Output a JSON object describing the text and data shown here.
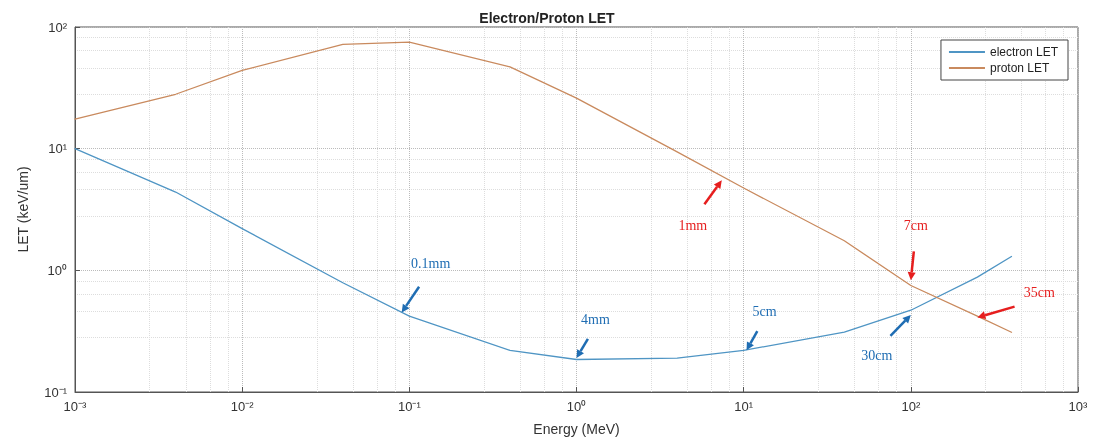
{
  "chart_data": {
    "type": "line",
    "title": "Electron/Proton LET",
    "xlabel": "Energy (MeV)",
    "ylabel": "LET (keV/um)",
    "x": [
      0.001,
      0.004,
      0.01,
      0.04,
      0.1,
      0.4,
      1,
      4,
      10,
      40,
      100,
      250,
      400
    ],
    "series": [
      {
        "name": "electron LET",
        "color": "#4f95c4",
        "values": [
          10,
          4.4,
          2.2,
          0.79,
          0.42,
          0.22,
          0.185,
          0.19,
          0.22,
          0.31,
          0.47,
          0.88,
          1.3
        ]
      },
      {
        "name": "proton LET",
        "color": "#c98a5e",
        "values": [
          17.5,
          28,
          44,
          72,
          75,
          47,
          26,
          9.4,
          4.75,
          1.75,
          0.75,
          0.42,
          0.31
        ]
      }
    ],
    "log": "xy",
    "xlim": [
      0.001,
      1000
    ],
    "ylim": [
      0.1,
      100
    ],
    "xticks": [
      {
        "value": 0.001,
        "label": "10⁻³"
      },
      {
        "value": 0.01,
        "label": "10⁻²"
      },
      {
        "value": 0.1,
        "label": "10⁻¹"
      },
      {
        "value": 1,
        "label": "10⁰"
      },
      {
        "value": 10,
        "label": "10¹"
      },
      {
        "value": 100,
        "label": "10²"
      },
      {
        "value": 1000,
        "label": "10³"
      }
    ],
    "yticks": [
      {
        "value": 0.1,
        "label": "10⁻¹"
      },
      {
        "value": 1,
        "label": "10⁰"
      },
      {
        "value": 10,
        "label": "10¹"
      },
      {
        "value": 100,
        "label": "10²"
      }
    ],
    "grid": true,
    "legend": "top right",
    "marker": "none",
    "line_style": "solid",
    "annotations": [
      {
        "text": "0.1mm",
        "x": 0.09,
        "y": 0.45
      },
      {
        "text": "4mm",
        "x": 1.0,
        "y": 0.19
      },
      {
        "text": "5cm",
        "x": 10.4,
        "y": 0.22
      },
      {
        "text": "30cm",
        "x": 100,
        "y": 0.43
      },
      {
        "text": "1mm",
        "x": 7.4,
        "y": 5.5
      },
      {
        "text": "7cm",
        "x": 100,
        "y": 0.83
      },
      {
        "text": "35cm",
        "x": 250,
        "y": 0.41
      }
    ]
  }
}
